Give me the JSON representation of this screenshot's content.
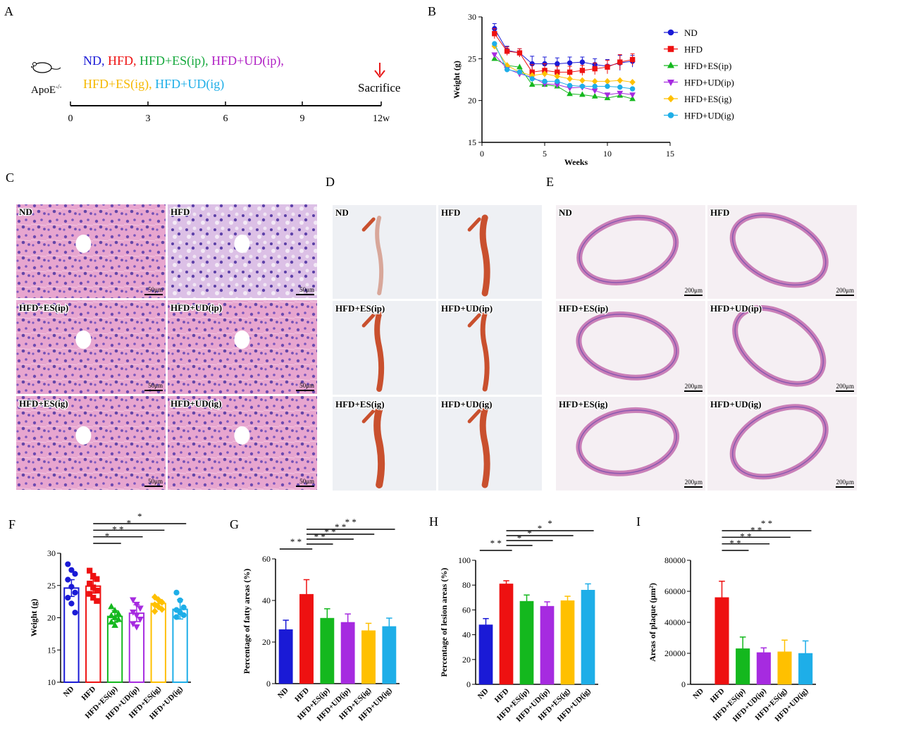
{
  "panels": {
    "A": "A",
    "B": "B",
    "C": "C",
    "D": "D",
    "E": "E",
    "F": "F",
    "G": "G",
    "H": "H",
    "I": "I"
  },
  "timeline": {
    "mouse_label": "ApoE",
    "mouse_sup": "-/-",
    "groups_line1": [
      {
        "text": "ND",
        "color": "#1a1ad6"
      },
      {
        "text": ", ",
        "color": "#1a1ad6"
      },
      {
        "text": "HFD",
        "color": "#ee1111"
      },
      {
        "text": ", ",
        "color": "#ee1111"
      },
      {
        "text": "HFD+ES(ip)",
        "color": "#14a83c"
      },
      {
        "text": ", ",
        "color": "#14a83c"
      },
      {
        "text": "HFD+UD(ip)",
        "color": "#b01fc4"
      },
      {
        "text": ",",
        "color": "#b01fc4"
      }
    ],
    "groups_line2": [
      {
        "text": "HFD+ES(ig)",
        "color": "#f5b800"
      },
      {
        "text": ", ",
        "color": "#f5b800"
      },
      {
        "text": "HFD+UD(ig)",
        "color": "#1eaee8"
      }
    ],
    "sacrifice": "Sacrifice",
    "ticks": [
      "0",
      "3",
      "6",
      "9",
      "12w"
    ]
  },
  "images": {
    "C_labels": [
      "ND",
      "HFD",
      "HFD+ES(ip)",
      "HFD+UD(ip)",
      "HFD+ES(ig)",
      "HFD+UD(ig)"
    ],
    "C_scale": "50μm",
    "D_labels": [
      "ND",
      "HFD",
      "HFD+ES(ip)",
      "HFD+UD(ip)",
      "HFD+ES(ig)",
      "HFD+UD(ig)"
    ],
    "E_labels": [
      "ND",
      "HFD",
      "HFD+ES(ip)",
      "HFD+UD(ip)",
      "HFD+ES(ig)",
      "HFD+UD(ig)"
    ],
    "E_scale": "200μm"
  },
  "colors": {
    "ND": "#1a1ad6",
    "HFD": "#ee1111",
    "ESip": "#14b81e",
    "UDip": "#a62be0",
    "ESig": "#ffc000",
    "UDig": "#1eaee8"
  },
  "chart_data": [
    {
      "id": "B",
      "type": "line",
      "xlabel": "Weeks",
      "ylabel": "Weight (g)",
      "xlim": [
        0,
        15
      ],
      "ylim": [
        15,
        30
      ],
      "xticks": [
        0,
        5,
        10,
        15
      ],
      "yticks": [
        15,
        20,
        25,
        30
      ],
      "x": [
        1,
        2,
        3,
        4,
        5,
        6,
        7,
        8,
        9,
        10,
        11,
        12
      ],
      "legend_position": "right",
      "series": [
        {
          "name": "ND",
          "marker": "circle",
          "values": [
            28.6,
            26.0,
            25.7,
            24.4,
            24.4,
            24.4,
            24.5,
            24.6,
            24.3,
            24.1,
            24.5,
            24.7
          ]
        },
        {
          "name": "HFD",
          "marker": "square",
          "values": [
            28.0,
            25.9,
            25.7,
            23.4,
            23.6,
            23.4,
            23.4,
            23.6,
            23.8,
            24.0,
            24.6,
            24.9
          ]
        },
        {
          "name": "HFD+ES(ip)",
          "marker": "triangle-up",
          "values": [
            25.0,
            24.2,
            24.0,
            21.9,
            21.9,
            21.7,
            20.8,
            20.7,
            20.5,
            20.3,
            20.6,
            20.2
          ]
        },
        {
          "name": "HFD+UD(ip)",
          "marker": "triangle-down",
          "values": [
            25.5,
            23.8,
            23.2,
            22.8,
            22.0,
            21.9,
            21.5,
            21.6,
            21.2,
            20.7,
            20.9,
            20.7
          ]
        },
        {
          "name": "HFD+ES(ig)",
          "marker": "diamond",
          "values": [
            26.5,
            24.2,
            23.4,
            23.0,
            23.2,
            22.9,
            22.6,
            22.4,
            22.3,
            22.3,
            22.4,
            22.2
          ]
        },
        {
          "name": "HFD+UD(ig)",
          "marker": "circle",
          "values": [
            26.8,
            23.7,
            23.4,
            22.6,
            22.3,
            22.3,
            21.8,
            21.7,
            21.7,
            21.7,
            21.6,
            21.4
          ]
        }
      ],
      "errors": [
        0.6,
        0.5,
        0.5,
        0.9,
        0.8,
        0.7,
        0.7,
        0.6,
        0.7,
        0.8,
        0.9,
        0.7
      ]
    },
    {
      "id": "F",
      "type": "bar",
      "ylabel": "Weight (g)",
      "ylim": [
        10,
        30
      ],
      "yticks": [
        10,
        15,
        20,
        25,
        30
      ],
      "categories": [
        "ND",
        "HFD",
        "HFD+ES(ip)",
        "HFD+UD(ip)",
        "HFD+ES(ig)",
        "HFD+UD(ig)"
      ],
      "values": [
        24.6,
        24.9,
        20.2,
        20.7,
        22.2,
        21.3
      ],
      "errors": [
        1.3,
        1.1,
        0.9,
        1.3,
        0.6,
        1.5
      ],
      "points": [
        [
          28.3,
          27.4,
          26.8,
          25.9,
          24.8,
          23.9,
          23.1,
          22.2,
          20.8
        ],
        [
          27.3,
          26.5,
          26.0,
          25.3,
          24.7,
          24.2,
          23.7,
          23.1,
          22.6
        ],
        [
          21.7,
          21.1,
          20.6,
          20.3,
          20.0,
          19.7,
          19.3,
          18.8
        ],
        [
          22.8,
          22.1,
          21.5,
          20.9,
          20.4,
          19.8,
          19.1,
          18.6
        ],
        [
          23.2,
          22.8,
          22.4,
          22.0,
          21.7,
          21.3,
          21.0
        ],
        [
          23.9,
          22.7,
          21.6,
          21.2,
          20.8,
          20.4,
          20.1
        ]
      ],
      "markers": [
        "circle",
        "square",
        "triangle-up",
        "triangle-down",
        "diamond",
        "circle"
      ],
      "significance": [
        {
          "from": 1,
          "to": 2,
          "label": "*"
        },
        {
          "from": 1,
          "to": 3,
          "label": "* *"
        },
        {
          "from": 1,
          "to": 4,
          "label": "*"
        },
        {
          "from": 1,
          "to": 5,
          "label": "*"
        }
      ]
    },
    {
      "id": "G",
      "type": "bar",
      "ylabel": "Percentage of fatty areas (%)",
      "ylim": [
        0,
        60
      ],
      "yticks": [
        0,
        20,
        40,
        60
      ],
      "categories": [
        "ND",
        "HFD",
        "HFD+ES(ip)",
        "HFD+UD(ip)",
        "HFD+ES(ig)",
        "HFD+UD(ig)"
      ],
      "values": [
        26.0,
        43.0,
        31.5,
        29.5,
        25.5,
        27.5
      ],
      "errors": [
        4.5,
        7.0,
        4.5,
        4.0,
        3.5,
        4.0
      ],
      "significance": [
        {
          "from": 0,
          "to": 1,
          "label": "* *"
        },
        {
          "from": 1,
          "to": 2,
          "label": "* *"
        },
        {
          "from": 1,
          "to": 3,
          "label": "* *"
        },
        {
          "from": 1,
          "to": 4,
          "label": "* *"
        },
        {
          "from": 1,
          "to": 5,
          "label": "* *"
        }
      ]
    },
    {
      "id": "H",
      "type": "bar",
      "ylabel": "Percentage of lesion areas (%)",
      "ylim": [
        0,
        100
      ],
      "yticks": [
        0,
        20,
        40,
        60,
        80,
        100
      ],
      "categories": [
        "ND",
        "HFD",
        "HFD+ES(ip)",
        "HFD+UD(ip)",
        "HFD+ES(ig)",
        "HFD+UD(ig)"
      ],
      "values": [
        48.0,
        81.0,
        67.0,
        63.0,
        67.5,
        76.0
      ],
      "errors": [
        5.0,
        2.5,
        5.0,
        3.5,
        3.5,
        5.0
      ],
      "significance": [
        {
          "from": 0,
          "to": 1,
          "label": "* *"
        },
        {
          "from": 1,
          "to": 2,
          "label": "*"
        },
        {
          "from": 1,
          "to": 3,
          "label": "*"
        },
        {
          "from": 1,
          "to": 4,
          "label": "*"
        },
        {
          "from": 1,
          "to": 5,
          "label": "*"
        }
      ]
    },
    {
      "id": "I",
      "type": "bar",
      "ylabel": "Areas of plaque (μm²)",
      "ylim": [
        0,
        80000
      ],
      "yticks": [
        0,
        20000,
        40000,
        60000,
        80000
      ],
      "categories": [
        "ND",
        "HFD",
        "HFD+ES(ip)",
        "HFD+UD(ip)",
        "HFD+ES(ig)",
        "HFD+UD(ig)"
      ],
      "values": [
        0,
        56000,
        23000,
        20500,
        21000,
        20000
      ],
      "errors": [
        0,
        10500,
        7500,
        3000,
        7500,
        8000
      ],
      "significance": [
        {
          "from": 1,
          "to": 2,
          "label": "* *"
        },
        {
          "from": 1,
          "to": 3,
          "label": "* *"
        },
        {
          "from": 1,
          "to": 4,
          "label": "* *"
        },
        {
          "from": 1,
          "to": 5,
          "label": "* *"
        }
      ]
    }
  ]
}
